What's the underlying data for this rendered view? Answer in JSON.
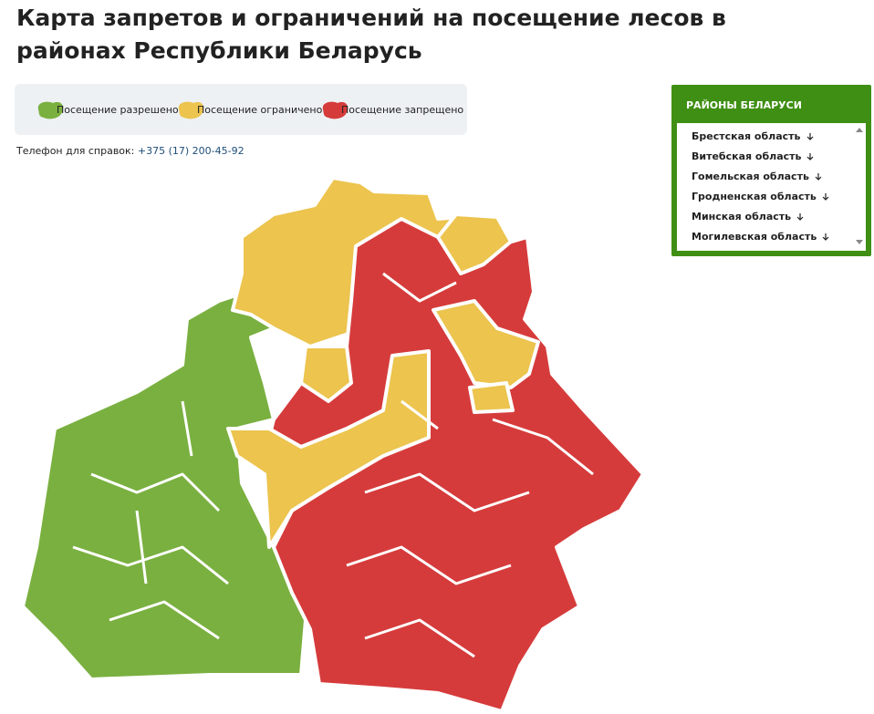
{
  "header": {
    "title": "Карта запретов и ограничений на посещение лесов в районах Республики Беларусь"
  },
  "legend": {
    "items": [
      "Посещение разрешено",
      "Посещение ограничено",
      "Посещение запрещено"
    ]
  },
  "phone": {
    "label": "Телефон для справок:",
    "number": "+375 (17) 200-45-92"
  },
  "panel": {
    "title": "РАЙОНЫ БЕЛАРУСИ",
    "items": [
      "Брестская область",
      "Витебская область",
      "Гомельская область",
      "Гродненская область",
      "Минская область",
      "Могилевская область"
    ]
  }
}
